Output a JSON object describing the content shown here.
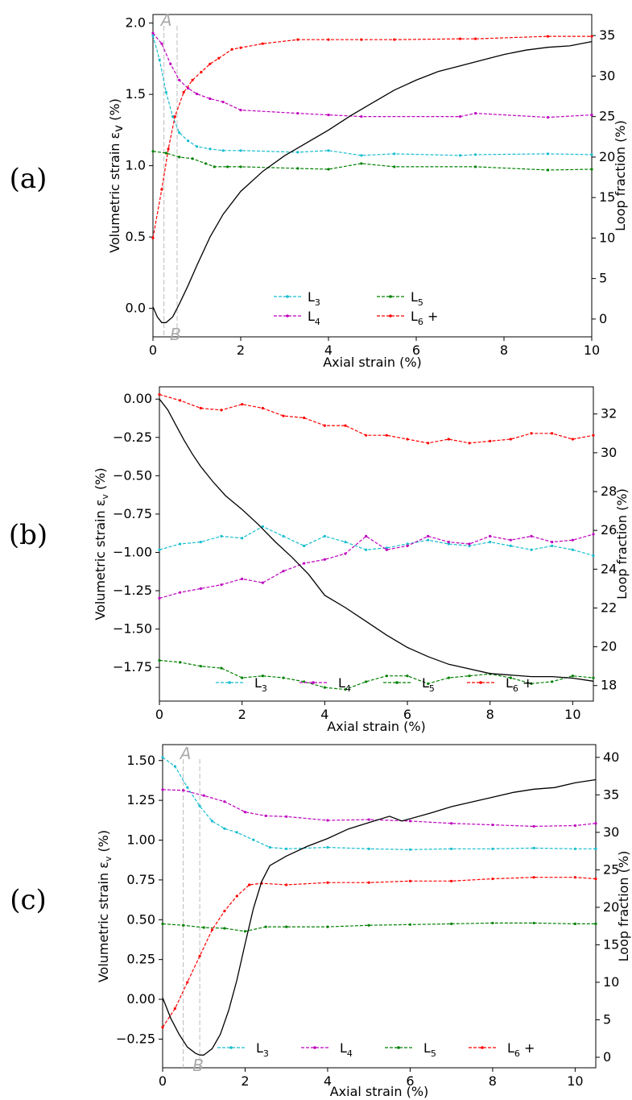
{
  "chart_data": [
    {
      "panel": "(a)",
      "type": "line",
      "xlabel": "Axial strain (%)",
      "ylabel": "Volumetric strain εv (%)",
      "y2label": "Loop fraction (%)",
      "xlim": [
        0,
        10
      ],
      "ylim": [
        -0.2,
        2.06
      ],
      "y2lim": [
        -2.2,
        37.6
      ],
      "xticks": [
        "0",
        "2",
        "4",
        "6",
        "8",
        "10"
      ],
      "xtick_values": [
        0,
        2,
        4,
        6,
        8,
        10
      ],
      "yticks": [
        "0.0",
        "0.5",
        "1.0",
        "1.5",
        "2.0"
      ],
      "ytick_values": [
        0.0,
        0.5,
        1.0,
        1.5,
        2.0
      ],
      "y2ticks": [
        "0",
        "5",
        "10",
        "15",
        "20",
        "25",
        "30",
        "35"
      ],
      "y2tick_values": [
        0,
        5,
        10,
        15,
        20,
        25,
        30,
        35
      ],
      "markers": [
        {
          "label": "A",
          "x": 0.25
        },
        {
          "label": "B",
          "x": 0.55
        }
      ],
      "volumetric_strain": {
        "x": [
          0,
          0.1,
          0.2,
          0.3,
          0.45,
          0.6,
          0.8,
          1.0,
          1.3,
          1.6,
          2.0,
          2.5,
          3.0,
          3.5,
          4.0,
          4.5,
          5.0,
          5.5,
          6.0,
          6.5,
          7.0,
          7.5,
          8.0,
          8.5,
          9.0,
          9.5,
          10.0
        ],
        "y": [
          0.01,
          -0.06,
          -0.1,
          -0.1,
          -0.06,
          0.03,
          0.16,
          0.3,
          0.5,
          0.66,
          0.82,
          0.96,
          1.07,
          1.16,
          1.25,
          1.35,
          1.44,
          1.53,
          1.6,
          1.66,
          1.7,
          1.74,
          1.78,
          1.81,
          1.83,
          1.84,
          1.87
        ]
      },
      "legend": [
        "L3",
        "L4",
        "L5",
        "L6 +"
      ],
      "series": [
        {
          "name": "L3",
          "color": "#17becf",
          "x": [
            0,
            0.15,
            0.3,
            0.45,
            0.6,
            0.8,
            1.0,
            1.3,
            1.6,
            2.0,
            3.3,
            4.0,
            4.75,
            5.5,
            7.0,
            7.35,
            9.0,
            10.0
          ],
          "y": [
            35,
            32,
            28,
            25,
            23,
            22,
            21.3,
            21,
            20.8,
            20.8,
            20.6,
            20.8,
            20.2,
            20.4,
            20.2,
            20.3,
            20.4,
            20.3
          ]
        },
        {
          "name": "L4",
          "color": "#bf00bf",
          "x": [
            0,
            0.2,
            0.4,
            0.6,
            0.8,
            1.0,
            1.3,
            1.6,
            2.0,
            3.3,
            4.0,
            4.75,
            7.0,
            7.35,
            9.0,
            10.0
          ],
          "y": [
            35.3,
            34,
            31.5,
            29.5,
            28.5,
            27.8,
            27.2,
            26.8,
            25.8,
            25.4,
            25.2,
            25.0,
            25.0,
            25.4,
            24.9,
            25.2
          ]
        },
        {
          "name": "L5",
          "color": "#008000",
          "x": [
            0,
            0.3,
            0.6,
            0.9,
            1.2,
            1.4,
            1.7,
            2.0,
            3.3,
            4.0,
            4.75,
            5.5,
            7.35,
            9.0,
            10.0
          ],
          "y": [
            20.7,
            20.5,
            20.0,
            19.8,
            19.2,
            18.8,
            18.8,
            18.8,
            18.6,
            18.5,
            19.2,
            18.8,
            18.8,
            18.4,
            18.5
          ]
        },
        {
          "name": "L6 +",
          "color": "#ff0000",
          "x": [
            0,
            0.2,
            0.35,
            0.5,
            0.7,
            0.9,
            1.1,
            1.3,
            1.5,
            1.8,
            2.0,
            2.5,
            3.3,
            4.0,
            4.75,
            5.5,
            7.0,
            7.35,
            9.0,
            10.0
          ],
          "y": [
            10,
            16,
            21,
            25,
            28,
            29.5,
            30.5,
            31.5,
            32.2,
            33.3,
            33.5,
            34.0,
            34.5,
            34.5,
            34.5,
            34.5,
            34.6,
            34.6,
            34.9,
            34.9
          ]
        }
      ]
    },
    {
      "panel": "(b)",
      "type": "line",
      "xlabel": "Axial strain (%)",
      "ylabel": "Volumetric strain εv (%)",
      "y2label": "Loop fraction (%)",
      "xlim": [
        0,
        10.5
      ],
      "ylim": [
        -1.97,
        0.08
      ],
      "y2lim": [
        17.2,
        33.4
      ],
      "xticks": [
        "0",
        "2",
        "4",
        "6",
        "8",
        "10"
      ],
      "xtick_values": [
        0,
        2,
        4,
        6,
        8,
        10
      ],
      "yticks": [
        "0.00",
        "−0.25",
        "−0.50",
        "−0.75",
        "−1.00",
        "−1.25",
        "−1.50",
        "−1.75"
      ],
      "ytick_values": [
        0,
        -0.25,
        -0.5,
        -0.75,
        -1.0,
        -1.25,
        -1.5,
        -1.75
      ],
      "y2ticks": [
        "18",
        "20",
        "22",
        "24",
        "26",
        "28",
        "30",
        "32"
      ],
      "y2tick_values": [
        18,
        20,
        22,
        24,
        26,
        28,
        30,
        32
      ],
      "markers": [],
      "volumetric_strain": {
        "x": [
          0,
          0.2,
          0.4,
          0.6,
          0.8,
          1.0,
          1.3,
          1.6,
          2.0,
          2.4,
          2.8,
          3.2,
          3.6,
          4.0,
          4.5,
          5.0,
          5.5,
          6.0,
          6.5,
          7.0,
          7.5,
          8.0,
          8.5,
          9.0,
          9.5,
          10.0,
          10.5
        ],
        "y": [
          0,
          -0.07,
          -0.17,
          -0.27,
          -0.36,
          -0.44,
          -0.54,
          -0.63,
          -0.72,
          -0.82,
          -0.93,
          -1.03,
          -1.14,
          -1.28,
          -1.36,
          -1.45,
          -1.54,
          -1.62,
          -1.68,
          -1.73,
          -1.76,
          -1.79,
          -1.8,
          -1.81,
          -1.81,
          -1.82,
          -1.84
        ]
      },
      "legend": [
        "L3",
        "L4",
        "L5",
        "L6 +"
      ],
      "series": [
        {
          "name": "L3",
          "color": "#17becf",
          "x": [
            0,
            0.5,
            1.0,
            1.5,
            2.0,
            2.5,
            3.0,
            3.5,
            4.0,
            4.5,
            5.0,
            5.5,
            6.0,
            6.5,
            7.0,
            7.5,
            8.0,
            8.5,
            9.0,
            9.5,
            10.0,
            10.5
          ],
          "y": [
            25.0,
            25.3,
            25.4,
            25.7,
            25.6,
            26.2,
            25.7,
            25.2,
            25.7,
            25.4,
            25.0,
            25.1,
            25.3,
            25.5,
            25.3,
            25.2,
            25.4,
            25.2,
            25.0,
            25.2,
            25.0,
            24.7
          ]
        },
        {
          "name": "L4",
          "color": "#bf00bf",
          "x": [
            0,
            0.5,
            1.0,
            1.5,
            2.0,
            2.5,
            3.0,
            3.5,
            4.0,
            4.5,
            5.0,
            5.5,
            6.0,
            6.5,
            7.0,
            7.5,
            8.0,
            8.5,
            9.0,
            9.5,
            10.0,
            10.5
          ],
          "y": [
            22.5,
            22.8,
            23.0,
            23.2,
            23.5,
            23.3,
            23.9,
            24.3,
            24.5,
            24.8,
            25.7,
            25.0,
            25.2,
            25.7,
            25.4,
            25.3,
            25.7,
            25.5,
            25.7,
            25.4,
            25.5,
            25.8
          ]
        },
        {
          "name": "L5",
          "color": "#008000",
          "x": [
            0,
            0.5,
            1.0,
            1.5,
            2.0,
            2.5,
            3.0,
            3.5,
            4.0,
            4.5,
            5.0,
            5.5,
            6.0,
            6.5,
            7.0,
            7.5,
            8.0,
            8.5,
            9.0,
            9.5,
            10.0,
            10.5
          ],
          "y": [
            19.3,
            19.2,
            19.0,
            18.9,
            18.4,
            18.5,
            18.4,
            18.2,
            17.9,
            17.8,
            18.2,
            18.5,
            18.5,
            18.1,
            18.4,
            18.5,
            18.6,
            18.4,
            18.1,
            18.2,
            18.5,
            18.4
          ]
        },
        {
          "name": "L6 +",
          "color": "#ff0000",
          "x": [
            0,
            0.5,
            1.0,
            1.5,
            2.0,
            2.5,
            3.0,
            3.5,
            4.0,
            4.5,
            5.0,
            5.5,
            6.0,
            6.5,
            7.0,
            7.5,
            8.0,
            8.5,
            9.0,
            9.5,
            10.0,
            10.5
          ],
          "y": [
            33.0,
            32.7,
            32.3,
            32.2,
            32.5,
            32.3,
            31.9,
            31.8,
            31.4,
            31.4,
            30.9,
            30.9,
            30.7,
            30.5,
            30.7,
            30.5,
            30.6,
            30.7,
            31.0,
            31.0,
            30.7,
            30.9
          ]
        }
      ]
    },
    {
      "panel": "(c)",
      "type": "line",
      "xlabel": "Axial strain (%)",
      "ylabel": "Volumetric strain εv (%)",
      "y2label": "Loop fraction (%)",
      "xlim": [
        0,
        10.5
      ],
      "ylim": [
        -0.43,
        1.6
      ],
      "y2lim": [
        -1.4,
        41.7
      ],
      "xticks": [
        "0",
        "2",
        "4",
        "6",
        "8",
        "10"
      ],
      "xtick_values": [
        0,
        2,
        4,
        6,
        8,
        10
      ],
      "yticks": [
        "−0.25",
        "0.00",
        "0.25",
        "0.50",
        "0.75",
        "1.00",
        "1.25",
        "1.50"
      ],
      "ytick_values": [
        -0.25,
        0,
        0.25,
        0.5,
        0.75,
        1.0,
        1.25,
        1.5
      ],
      "y2ticks": [
        "0",
        "5",
        "10",
        "15",
        "20",
        "25",
        "30",
        "35",
        "40"
      ],
      "y2tick_values": [
        0,
        5,
        10,
        15,
        20,
        25,
        30,
        35,
        40
      ],
      "markers": [
        {
          "label": "A",
          "x": 0.5
        },
        {
          "label": "B",
          "x": 0.9
        }
      ],
      "volumetric_strain": {
        "x": [
          0,
          0.2,
          0.4,
          0.6,
          0.8,
          0.9,
          1.0,
          1.2,
          1.4,
          1.6,
          1.8,
          2.0,
          2.2,
          2.4,
          2.6,
          3.0,
          3.5,
          4.0,
          4.5,
          5.0,
          5.5,
          5.8,
          6.5,
          7.0,
          7.5,
          8.0,
          8.5,
          9.0,
          9.5,
          10.0,
          10.5
        ],
        "y": [
          0.01,
          -0.12,
          -0.22,
          -0.3,
          -0.34,
          -0.35,
          -0.35,
          -0.31,
          -0.22,
          -0.07,
          0.12,
          0.35,
          0.57,
          0.74,
          0.84,
          0.9,
          0.96,
          1.01,
          1.07,
          1.11,
          1.15,
          1.12,
          1.17,
          1.21,
          1.24,
          1.27,
          1.3,
          1.32,
          1.33,
          1.36,
          1.38
        ]
      },
      "legend": [
        "L3",
        "L4",
        "L5",
        "L6 +"
      ],
      "series": [
        {
          "name": "L3",
          "color": "#17becf",
          "x": [
            0,
            0.3,
            0.6,
            0.9,
            1.2,
            1.5,
            1.8,
            2.2,
            2.6,
            3.0,
            4.0,
            5.0,
            6.0,
            7.0,
            8.0,
            9.0,
            10.0,
            10.5
          ],
          "y": [
            40.0,
            38.8,
            36.0,
            33.5,
            31.5,
            30.5,
            30.0,
            29.0,
            28.0,
            27.8,
            28.0,
            27.8,
            27.7,
            27.8,
            27.8,
            27.9,
            27.8,
            27.8
          ]
        },
        {
          "name": "L4",
          "color": "#bf00bf",
          "x": [
            0,
            0.5,
            1.0,
            1.5,
            2.0,
            2.5,
            3.0,
            4.0,
            5.0,
            6.0,
            7.0,
            8.0,
            9.0,
            10.0,
            10.5
          ],
          "y": [
            35.7,
            35.6,
            34.9,
            34.1,
            32.7,
            32.2,
            32.1,
            31.6,
            31.7,
            31.5,
            31.2,
            31.0,
            30.8,
            30.9,
            31.2
          ]
        },
        {
          "name": "L5",
          "color": "#008000",
          "x": [
            0,
            0.5,
            1.0,
            1.5,
            2.0,
            2.5,
            3.0,
            4.0,
            5.0,
            6.0,
            7.0,
            8.0,
            9.0,
            10.0,
            10.5
          ],
          "y": [
            17.8,
            17.6,
            17.3,
            17.2,
            16.8,
            17.4,
            17.4,
            17.4,
            17.6,
            17.7,
            17.8,
            17.9,
            17.9,
            17.8,
            17.8
          ]
        },
        {
          "name": "L6 +",
          "color": "#ff0000",
          "x": [
            0,
            0.3,
            0.6,
            0.9,
            1.2,
            1.5,
            1.8,
            2.1,
            2.4,
            3.0,
            4.0,
            5.0,
            6.0,
            7.0,
            8.0,
            9.0,
            10.0,
            10.5
          ],
          "y": [
            4.0,
            6.5,
            10.0,
            13.5,
            17.0,
            19.5,
            21.5,
            23.0,
            23.2,
            23.0,
            23.3,
            23.3,
            23.5,
            23.5,
            23.8,
            24.0,
            24.0,
            23.8
          ]
        }
      ]
    }
  ]
}
